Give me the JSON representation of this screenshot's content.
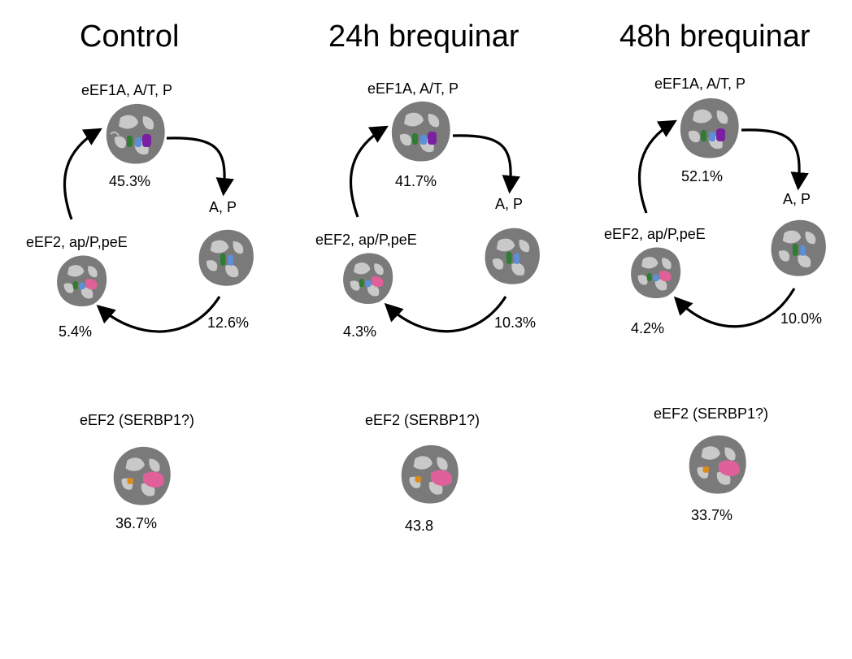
{
  "panels": [
    {
      "title": "Control",
      "state_top": {
        "label": "eEF1A, A/T, P",
        "percent": "45.3%"
      },
      "state_right": {
        "label": "A, P",
        "percent": "12.6%"
      },
      "state_left": {
        "label": "eEF2, ap/P,peE",
        "percent": "5.4%"
      },
      "state_bottom": {
        "label": "eEF2 (SERBP1?)",
        "percent": "36.7%"
      }
    },
    {
      "title": "24h brequinar",
      "state_top": {
        "label": "eEF1A, A/T, P",
        "percent": "41.7%"
      },
      "state_right": {
        "label": "A, P",
        "percent": "10.3%"
      },
      "state_left": {
        "label": "eEF2, ap/P,peE",
        "percent": "4.3%"
      },
      "state_bottom": {
        "label": "eEF2 (SERBP1?)",
        "percent": "43.8"
      }
    },
    {
      "title": "48h brequinar",
      "state_top": {
        "label": "eEF1A, A/T, P",
        "percent": "52.1%"
      },
      "state_right": {
        "label": "A, P",
        "percent": "10.0%"
      },
      "state_left": {
        "label": "eEF2, ap/P,peE",
        "percent": "4.2%"
      },
      "state_bottom": {
        "label": "eEF2 (SERBP1?)",
        "percent": "33.7%"
      }
    }
  ],
  "colors": {
    "density_dark": "#6f6f6f",
    "density_light": "#c9c9c9",
    "site_a_green": "#2e7d32",
    "site_p_blue": "#5b8fd9",
    "eef1a_purple": "#7b1fa2",
    "eef2_pink": "#e0609a",
    "serbp1_orange": "#d98c1a",
    "arrow": "#000000"
  }
}
